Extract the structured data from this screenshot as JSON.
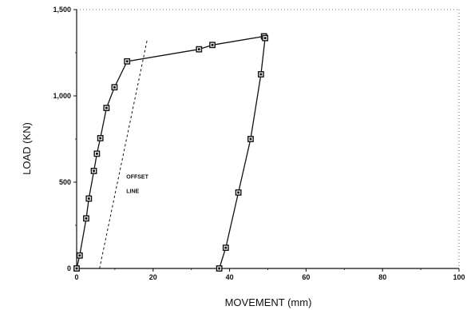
{
  "chart_data": {
    "type": "line",
    "xlabel": "MOVEMENT (mm)",
    "ylabel": "LOAD (KN)",
    "xlim": [
      0,
      100
    ],
    "ylim": [
      0,
      1500
    ],
    "x_ticks": [
      {
        "value": 0,
        "label": "0"
      },
      {
        "value": 20,
        "label": "20"
      },
      {
        "value": 40,
        "label": "40"
      },
      {
        "value": 60,
        "label": "60"
      },
      {
        "value": 80,
        "label": "80"
      },
      {
        "value": 100,
        "label": "100"
      }
    ],
    "y_ticks": [
      {
        "value": 0,
        "label": "0"
      },
      {
        "value": 500,
        "label": "500"
      },
      {
        "value": 1000,
        "label": "1,000"
      },
      {
        "value": 1500,
        "label": "1,500"
      }
    ],
    "grid": false,
    "series": [
      {
        "marker": "square",
        "points": [
          {
            "x": 0,
            "y": 0
          },
          {
            "x": 0.8,
            "y": 75
          },
          {
            "x": 2.5,
            "y": 290
          },
          {
            "x": 3.2,
            "y": 405
          },
          {
            "x": 4.5,
            "y": 565
          },
          {
            "x": 5.3,
            "y": 665
          },
          {
            "x": 6.2,
            "y": 755
          },
          {
            "x": 7.8,
            "y": 930
          },
          {
            "x": 9.9,
            "y": 1050
          },
          {
            "x": 13.2,
            "y": 1200
          },
          {
            "x": 32,
            "y": 1270
          },
          {
            "x": 35.5,
            "y": 1295
          },
          {
            "x": 49,
            "y": 1345
          },
          {
            "x": 49.3,
            "y": 1335
          },
          {
            "x": 48.2,
            "y": 1125
          },
          {
            "x": 45.5,
            "y": 750
          },
          {
            "x": 42.3,
            "y": 440
          },
          {
            "x": 39,
            "y": 120
          },
          {
            "x": 37.3,
            "y": 0
          }
        ]
      },
      {
        "style": "dashed",
        "points": [
          {
            "x": 6,
            "y": 0
          },
          {
            "x": 18.5,
            "y": 1330
          }
        ]
      }
    ],
    "annotations": [
      {
        "lines": [
          "OFFSET",
          "LINE"
        ],
        "x": 13,
        "y": 520
      }
    ]
  }
}
